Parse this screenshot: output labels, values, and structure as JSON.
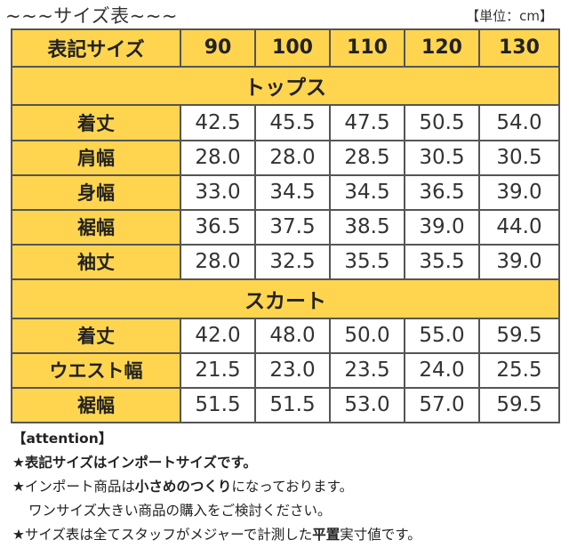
{
  "header": {
    "title": "~~~サイズ表~~~",
    "unit": "【単位：cm】"
  },
  "table": {
    "corner_label": "表記サイズ",
    "sizes": [
      "90",
      "100",
      "110",
      "120",
      "130"
    ],
    "sections": [
      {
        "name": "トップス",
        "rows": [
          {
            "label": "着丈",
            "values": [
              "42.5",
              "45.5",
              "47.5",
              "50.5",
              "54.0"
            ]
          },
          {
            "label": "肩幅",
            "values": [
              "28.0",
              "28.0",
              "28.5",
              "30.5",
              "30.5"
            ]
          },
          {
            "label": "身幅",
            "values": [
              "33.0",
              "34.5",
              "34.5",
              "36.5",
              "39.0"
            ]
          },
          {
            "label": "裾幅",
            "values": [
              "36.5",
              "37.5",
              "38.5",
              "39.0",
              "44.0"
            ]
          },
          {
            "label": "袖丈",
            "values": [
              "28.0",
              "32.5",
              "35.5",
              "35.5",
              "39.0"
            ]
          }
        ]
      },
      {
        "name": "スカート",
        "rows": [
          {
            "label": "着丈",
            "values": [
              "42.0",
              "48.0",
              "50.0",
              "55.0",
              "59.5"
            ]
          },
          {
            "label": "ウエスト幅",
            "values": [
              "21.5",
              "23.0",
              "23.5",
              "24.0",
              "25.5"
            ]
          },
          {
            "label": "裾幅",
            "values": [
              "51.5",
              "51.5",
              "53.0",
              "57.0",
              "59.5"
            ]
          }
        ]
      }
    ]
  },
  "notes": {
    "heading": "【attention】",
    "n1": "★表記サイズはインポートサイズです。",
    "n2a": "★インポート商品は",
    "n2b": "小さめのつくり",
    "n2c": "になっております。",
    "n3": "ワンサイズ大きい商品の購入をご検討ください。",
    "n4a": "★サイズ表は全てスタッフがメジャーで計測した",
    "n4b": "平置",
    "n4c": "実寸値です。"
  },
  "colors": {
    "header_bg": "#FFD54F",
    "cell_bg": "#FFFFFF",
    "border": "#555555"
  }
}
